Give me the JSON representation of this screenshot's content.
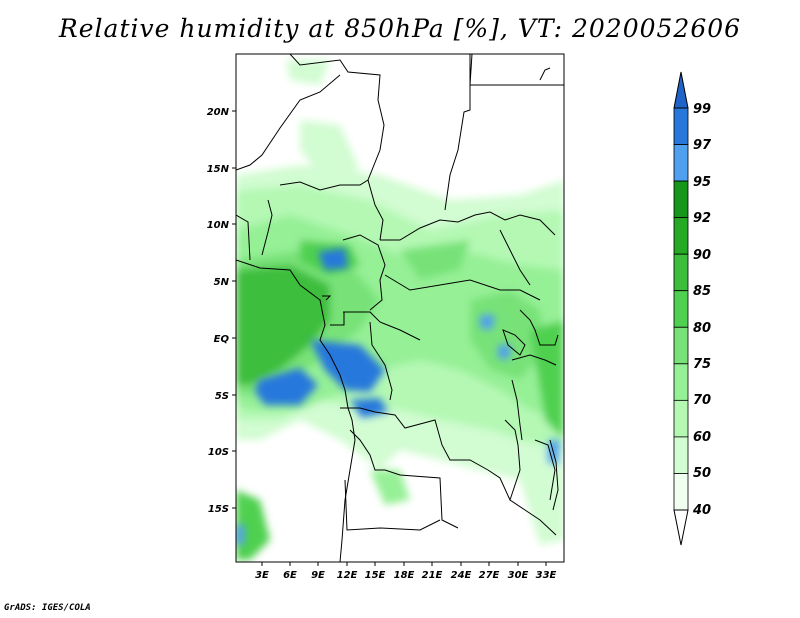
{
  "title": "Relative humidity at 850hPa [%], VT: 2020052606",
  "credit": "GrADS: IGES/COLA",
  "map": {
    "lon_range": [
      0,
      35
    ],
    "lat_range": [
      -20,
      25
    ],
    "x_ticks": [
      "3E",
      "6E",
      "9E",
      "12E",
      "15E",
      "18E",
      "21E",
      "24E",
      "27E",
      "30E",
      "33E"
    ],
    "y_ticks": [
      "20N",
      "15N",
      "10N",
      "5N",
      "EQ",
      "5S",
      "10S",
      "15S"
    ],
    "variable": "relative humidity",
    "level": "850hPa",
    "valid_time": "2020052606"
  },
  "colorbar": {
    "levels": [
      "99",
      "97",
      "95",
      "92",
      "90",
      "85",
      "80",
      "75",
      "70",
      "60",
      "50",
      "40"
    ],
    "colors": [
      "#1e64c8",
      "#2878dc",
      "#50a0f0",
      "#16961a",
      "#26aa26",
      "#3cbe3c",
      "#50d050",
      "#78e278",
      "#96f096",
      "#b4f8b4",
      "#d2fcd2",
      "#f0fff0"
    ],
    "top_color": "#1e64c8",
    "bottom_color": "#ffffff"
  }
}
